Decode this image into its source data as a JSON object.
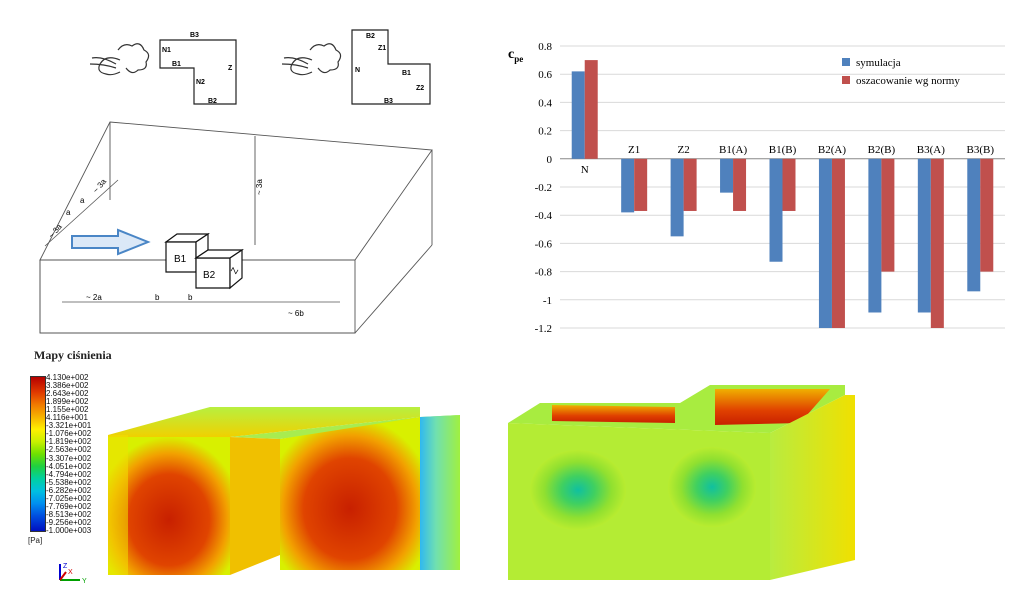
{
  "diagram": {
    "plan1": {
      "B3": "B3",
      "N1": "N1",
      "B1": "B1",
      "N2": "N2",
      "Z": "Z",
      "B2": "B2"
    },
    "plan2": {
      "B2": "B2",
      "Z1": "Z1",
      "N": "N",
      "B1": "B1",
      "Z2": "Z2",
      "B3": "B3"
    },
    "domain": {
      "dim_3a_left": "~ 3a",
      "dim_a1": "a",
      "dim_a2": "a",
      "dim_3a_top": "~ 3a",
      "dim_height": "~ 3a",
      "dim_2a": "~ 2a",
      "dim_b1": "b",
      "dim_b2": "b",
      "dim_6b": "~ 6b",
      "block_B1": "B1",
      "block_B2": "B2",
      "block_Z": "Z"
    }
  },
  "chart_data": {
    "type": "bar",
    "ylabel": "c",
    "ylabel_sub": "pe",
    "categories": [
      "N",
      "Z1",
      "Z2",
      "B1(A)",
      "B1(B)",
      "B2(A)",
      "B2(B)",
      "B3(A)",
      "B3(B)"
    ],
    "series": [
      {
        "name": "symulacja",
        "color": "#4f81bd",
        "values": [
          0.62,
          -0.38,
          -0.55,
          -0.24,
          -0.73,
          -1.2,
          -1.09,
          -1.09,
          -0.94
        ]
      },
      {
        "name": "oszacowanie wg normy",
        "color": "#c0504d",
        "values": [
          0.7,
          -0.37,
          -0.37,
          -0.37,
          -0.37,
          -1.2,
          -0.8,
          -1.2,
          -0.8
        ]
      }
    ],
    "ylim": [
      -1.2,
      0.8
    ],
    "yticks": [
      "0.8",
      "0.6",
      "0.4",
      "0.2",
      "0",
      "-0.2",
      "-0.4",
      "-0.6",
      "-0.8",
      "-1",
      "-1.2"
    ],
    "grid": true,
    "legend_position": "top-right"
  },
  "maps": {
    "title": "Mapy ciśnienia",
    "unit": "[Pa]",
    "legend_values": [
      "4.130e+002",
      "3.386e+002",
      "2.643e+002",
      "1.899e+002",
      "1.155e+002",
      "4.116e+001",
      "-3.321e+001",
      "-1.076e+002",
      "-1.819e+002",
      "-2.563e+002",
      "-3.307e+002",
      "-4.051e+002",
      "-4.794e+002",
      "-5.538e+002",
      "-6.282e+002",
      "-7.025e+002",
      "-7.769e+002",
      "-8.513e+002",
      "-9.256e+002",
      "-1.000e+003"
    ],
    "axes": {
      "x": "X",
      "y": "Y",
      "z": "Z"
    }
  }
}
